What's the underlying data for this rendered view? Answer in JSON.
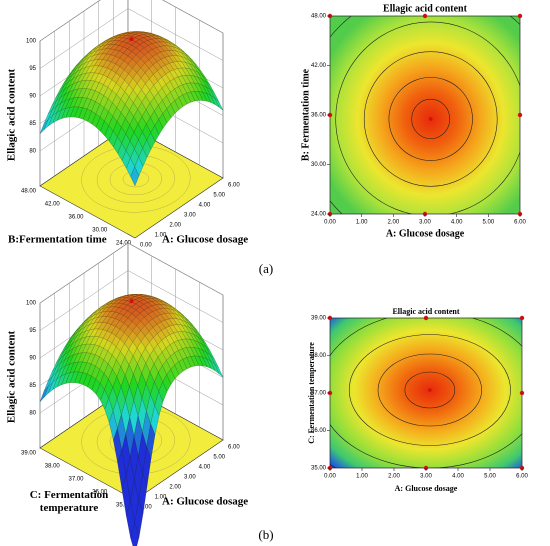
{
  "figure": {
    "label_a": "(a)",
    "label_b": "(b)"
  },
  "chart_data": [
    {
      "type": "surface3d",
      "zlabel": "Ellagic acid content",
      "xlabel": "A: Glucose dosage",
      "ylabel": "B:Fermentation time",
      "xlim": [
        0,
        6
      ],
      "xticks": [
        {
          "value": 0,
          "label": "0.00"
        },
        {
          "value": 1,
          "label": "1.00"
        },
        {
          "value": 2,
          "label": "2.00"
        },
        {
          "value": 3,
          "label": "3.00"
        },
        {
          "value": 4,
          "label": "4.00"
        },
        {
          "value": 5,
          "label": "5.00"
        },
        {
          "value": 6,
          "label": "6.00"
        }
      ],
      "ylim": [
        24,
        48
      ],
      "yticks": [
        {
          "value": 24,
          "label": "24.00"
        },
        {
          "value": 30,
          "label": "30.00"
        },
        {
          "value": 36,
          "label": "36.00"
        },
        {
          "value": 42,
          "label": "42.00"
        },
        {
          "value": 48,
          "label": "48.00"
        }
      ],
      "zlim": [
        80,
        100
      ],
      "zticks": [
        80,
        85,
        90,
        95,
        100
      ]
    },
    {
      "type": "contour",
      "title": "Ellagic acid content",
      "xlabel": "A: Glucose dosage",
      "ylabel": "B: Fermentation time",
      "xlim": [
        0,
        6
      ],
      "xticks": [
        {
          "value": 0,
          "label": "0.00"
        },
        {
          "value": 1,
          "label": "1.00"
        },
        {
          "value": 2,
          "label": "2.00"
        },
        {
          "value": 3,
          "label": "3.00"
        },
        {
          "value": 4,
          "label": "4.00"
        },
        {
          "value": 5,
          "label": "5.00"
        },
        {
          "value": 6,
          "label": "6.00"
        }
      ],
      "ylim": [
        24,
        48
      ],
      "yticks": [
        {
          "value": 24,
          "label": "24.00"
        },
        {
          "value": 30,
          "label": "30.00"
        },
        {
          "value": 36,
          "label": "36.00"
        },
        {
          "value": 42,
          "label": "42.00"
        },
        {
          "value": 48,
          "label": "48.00"
        }
      ]
    },
    {
      "type": "surface3d",
      "zlabel": "Ellagic acid content",
      "xlabel": "A: Glucose dosage",
      "ylabel": "C: Fermentation temperature",
      "xlim": [
        0,
        6
      ],
      "xticks": [
        {
          "value": 0,
          "label": "0.00"
        },
        {
          "value": 1,
          "label": "1.00"
        },
        {
          "value": 2,
          "label": "2.00"
        },
        {
          "value": 3,
          "label": "3.00"
        },
        {
          "value": 4,
          "label": "4.00"
        },
        {
          "value": 5,
          "label": "5.00"
        },
        {
          "value": 6,
          "label": "6.00"
        }
      ],
      "ylim": [
        35,
        39
      ],
      "yticks": [
        {
          "value": 35,
          "label": "35.00"
        },
        {
          "value": 36,
          "label": "36.00"
        },
        {
          "value": 37,
          "label": "37.00"
        },
        {
          "value": 38,
          "label": "38.00"
        },
        {
          "value": 39,
          "label": "39.00"
        }
      ],
      "zlim": [
        80,
        100
      ],
      "zticks": [
        80,
        85,
        90,
        95,
        100
      ]
    },
    {
      "type": "contour",
      "title": "Ellagic acid content",
      "xlabel": "A: Glucose dosage",
      "ylabel": "C: Fermentation temperature",
      "xlim": [
        0,
        6
      ],
      "xticks": [
        {
          "value": 0,
          "label": "0.00"
        },
        {
          "value": 1,
          "label": "1.00"
        },
        {
          "value": 2,
          "label": "2.00"
        },
        {
          "value": 3,
          "label": "3.00"
        },
        {
          "value": 4,
          "label": "4.00"
        },
        {
          "value": 5,
          "label": "5.00"
        },
        {
          "value": 6,
          "label": "6.00"
        }
      ],
      "ylim": [
        35,
        39
      ],
      "yticks": [
        {
          "value": 35,
          "label": "35.00"
        },
        {
          "value": 36,
          "label": "36.00"
        },
        {
          "value": 37,
          "label": "37.00"
        },
        {
          "value": 38,
          "label": "38.00"
        },
        {
          "value": 39,
          "label": "39.00"
        }
      ]
    }
  ]
}
